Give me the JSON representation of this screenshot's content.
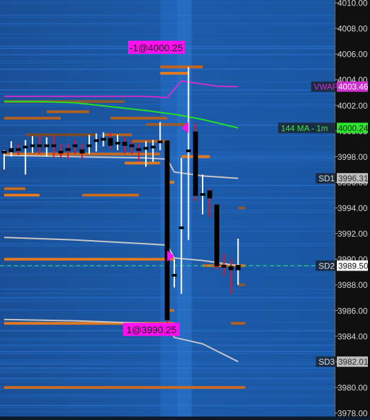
{
  "chart_data": {
    "type": "candlestick",
    "title": "",
    "xlabel": "",
    "ylabel": "",
    "ylim": [
      3978.0,
      4010.0
    ],
    "y_axis": {
      "position": "right",
      "ticks": [
        {
          "value": 4010.0,
          "label": "4010.00"
        },
        {
          "value": 4008.0,
          "label": "4008.00"
        },
        {
          "value": 4006.0,
          "label": "4006.00"
        },
        {
          "value": 4004.0,
          "label": "4004.00"
        },
        {
          "value": 4002.0,
          "label": "4002.00"
        },
        {
          "value": 4000.0,
          "label": "4000.00"
        },
        {
          "value": 3998.0,
          "label": "3998.00"
        },
        {
          "value": 3996.0,
          "label": "3996.00"
        },
        {
          "value": 3994.0,
          "label": "3994.00"
        },
        {
          "value": 3992.0,
          "label": "3992.00"
        },
        {
          "value": 3990.0,
          "label": "3990.00"
        },
        {
          "value": 3988.0,
          "label": "3988.00"
        },
        {
          "value": 3986.0,
          "label": "3986.00"
        },
        {
          "value": 3984.0,
          "label": "3984.00"
        },
        {
          "value": 3982.0,
          "label": "3982.00"
        },
        {
          "value": 3980.0,
          "label": "3980.00"
        },
        {
          "value": 3978.0,
          "label": "3978.00"
        }
      ]
    },
    "x_range": [
      0,
      48
    ],
    "candles": [
      {
        "x": 0,
        "open": 3998.3,
        "close": 3998.4,
        "high": 3998.5,
        "low": 3997.0
      },
      {
        "x": 1,
        "open": 3998.4,
        "close": 3998.6,
        "high": 3999.2,
        "low": 3998.0
      },
      {
        "x": 2,
        "open": 3998.6,
        "close": 3998.5,
        "high": 3999.0,
        "low": 3998.1
      },
      {
        "x": 3,
        "open": 3998.7,
        "close": 3998.8,
        "high": 3999.3,
        "low": 3996.6
      },
      {
        "x": 4,
        "open": 3998.8,
        "close": 3998.9,
        "high": 3999.6,
        "low": 3998.3
      },
      {
        "x": 5,
        "open": 3998.9,
        "close": 3998.8,
        "high": 3999.6,
        "low": 3998.2
      },
      {
        "x": 6,
        "open": 3998.8,
        "close": 3998.9,
        "high": 3999.5,
        "low": 3998.0
      },
      {
        "x": 7,
        "open": 3998.9,
        "close": 3998.8,
        "high": 3999.6,
        "low": 3997.9
      },
      {
        "x": 8,
        "open": 3998.4,
        "close": 3998.3,
        "high": 3999.0,
        "low": 3997.9
      },
      {
        "x": 9,
        "open": 3998.6,
        "close": 3998.5,
        "high": 3999.0,
        "low": 3997.8
      },
      {
        "x": 10,
        "open": 3998.9,
        "close": 3998.8,
        "high": 3999.3,
        "low": 3998.2
      },
      {
        "x": 11,
        "open": 3998.5,
        "close": 3998.3,
        "high": 3999.0,
        "low": 3997.8
      },
      {
        "x": 12,
        "open": 3998.8,
        "close": 3998.9,
        "high": 3999.7,
        "low": 3998.2
      },
      {
        "x": 13,
        "open": 3999.2,
        "close": 3999.3,
        "high": 3999.8,
        "low": 3998.4
      },
      {
        "x": 14,
        "open": 3999.3,
        "close": 3999.4,
        "high": 3999.9,
        "low": 3998.8
      },
      {
        "x": 15,
        "open": 3999.4,
        "close": 3998.9,
        "high": 3999.9,
        "low": 3998.6
      },
      {
        "x": 16,
        "open": 3999.0,
        "close": 3999.1,
        "high": 3999.7,
        "low": 3998.5
      },
      {
        "x": 17,
        "open": 3999.1,
        "close": 3998.9,
        "high": 3999.5,
        "low": 3998.2
      },
      {
        "x": 18,
        "open": 3998.9,
        "close": 3998.8,
        "high": 3999.3,
        "low": 3998.2
      },
      {
        "x": 19,
        "open": 3998.6,
        "close": 3998.5,
        "high": 3999.0,
        "low": 3997.6
      },
      {
        "x": 20,
        "open": 3998.6,
        "close": 3998.7,
        "high": 3999.2,
        "low": 3997.2
      },
      {
        "x": 21,
        "open": 3998.7,
        "close": 3998.8,
        "high": 3999.3,
        "low": 3997.6
      },
      {
        "x": 22,
        "open": 3999.1,
        "close": 3999.2,
        "high": 4000.7,
        "low": 3998.5
      },
      {
        "x": 23,
        "open": 3999.2,
        "close": 3985.3,
        "high": 3999.3,
        "low": 3985.0
      },
      {
        "x": 24,
        "open": 3988.7,
        "close": 3988.8,
        "high": 3990.0,
        "low": 3987.8
      },
      {
        "x": 25,
        "open": 3992.4,
        "close": 3992.5,
        "high": 3997.9,
        "low": 3987.3
      },
      {
        "x": 26,
        "open": 3998.4,
        "close": 3998.5,
        "high": 4005.0,
        "low": 3991.5
      },
      {
        "x": 27,
        "open": 3999.9,
        "close": 3995.0,
        "high": 4000.6,
        "low": 3994.5
      },
      {
        "x": 28,
        "open": 3995.0,
        "close": 3995.1,
        "high": 3996.6,
        "low": 3993.5
      },
      {
        "x": 29,
        "open": 3995.3,
        "close": 3994.8,
        "high": 3995.5,
        "low": 3993.3
      },
      {
        "x": 30,
        "open": 3994.2,
        "close": 3989.5,
        "high": 3994.3,
        "low": 3989.2
      },
      {
        "x": 31,
        "open": 3989.5,
        "close": 3989.4,
        "high": 3990.4,
        "low": 3988.7
      },
      {
        "x": 32,
        "open": 3989.4,
        "close": 3989.2,
        "high": 3990.0,
        "low": 3987.3
      },
      {
        "x": 33,
        "open": 3989.2,
        "close": 3989.5,
        "high": 3991.6,
        "low": 3988.0
      }
    ],
    "series": [
      {
        "name": "VWAP",
        "color": "#ce2fd1",
        "points": [
          [
            0,
            4002.7
          ],
          [
            10,
            4002.7
          ],
          [
            20,
            4002.7
          ],
          [
            23,
            4002.6
          ],
          [
            25,
            4003.9
          ],
          [
            30,
            4003.5
          ],
          [
            33,
            4003.46
          ]
        ]
      },
      {
        "name": "144 MA - 1m",
        "color": "#22e028",
        "points": [
          [
            0,
            4002.3
          ],
          [
            5,
            4002.3
          ],
          [
            10,
            4002.2
          ],
          [
            15,
            4001.9
          ],
          [
            20,
            4001.6
          ],
          [
            24,
            4001.3
          ],
          [
            28,
            4000.9
          ],
          [
            33,
            4000.24
          ]
        ]
      },
      {
        "name": "SD1",
        "color": "#c8c8c8",
        "points": [
          [
            0,
            3998.1
          ],
          [
            10,
            3998.0
          ],
          [
            20,
            3997.9
          ],
          [
            23,
            3997.8
          ],
          [
            24,
            3996.8
          ],
          [
            28,
            3996.5
          ],
          [
            33,
            3996.31
          ]
        ]
      },
      {
        "name": "SD2",
        "color": "#c8c8c8",
        "points": [
          [
            0,
            3991.7
          ],
          [
            10,
            3991.5
          ],
          [
            20,
            3991.2
          ],
          [
            23,
            3991.1
          ],
          [
            24,
            3990.1
          ],
          [
            28,
            3989.9
          ],
          [
            33,
            3989.5
          ]
        ]
      },
      {
        "name": "SD3",
        "color": "#c8c8c8",
        "points": [
          [
            0,
            3985.3
          ],
          [
            10,
            3985.2
          ],
          [
            20,
            3985.0
          ],
          [
            23,
            3984.9
          ],
          [
            24,
            3983.9
          ],
          [
            28,
            3983.4
          ],
          [
            33,
            3982.01
          ]
        ]
      }
    ],
    "current_price_line": {
      "value": 3989.5,
      "color": "#2ee86a"
    },
    "line_labels": [
      {
        "text": "VWAP",
        "value": "4003.46",
        "y": 4003.46,
        "name_color": "#ce2fd1",
        "box_color": "#ce2fd1",
        "value_color": "#ffffff"
      },
      {
        "text": "144 MA - 1m",
        "value": "4000.24",
        "y": 4000.24,
        "name_color": "#3de83d",
        "box_color": "#2ce62c",
        "value_color": "#0b2a0b"
      },
      {
        "text": "SD1",
        "value": "3996.31",
        "y": 3996.31,
        "name_color": "#e0e0e0",
        "box_color": "#bdbdbd",
        "value_color": "#2a2a2a"
      },
      {
        "text": "SD2",
        "value": "3989.50",
        "y": 3989.5,
        "name_color": "#e0e0e0",
        "box_color": "#ffffff",
        "value_color": "#111111"
      },
      {
        "text": "SD3",
        "value": "3982.01",
        "y": 3982.01,
        "name_color": "#e0e0e0",
        "box_color": "#bdbdbd",
        "value_color": "#2a2a2a"
      }
    ],
    "trade_markers": [
      {
        "label": "-1@4000.25",
        "price": 4000.25,
        "x": 25.7,
        "side": "sell",
        "label_y": 4006.5,
        "color": "#ff10f0"
      },
      {
        "label": "1@3990.25",
        "price": 3990.25,
        "x": 23.3,
        "side": "buy",
        "label_y": 3984.5,
        "color": "#ff10f0"
      }
    ],
    "volume_levels": [
      {
        "price": 4005.0,
        "x0": 22,
        "x1": 28,
        "color": "#c8631c"
      },
      {
        "price": 4004.5,
        "x0": 22,
        "x1": 26,
        "color": "#e07a22"
      },
      {
        "price": 4001.0,
        "x0": 0,
        "x1": 8,
        "color": "#b06020"
      },
      {
        "price": 4002.3,
        "x0": 0,
        "x1": 17,
        "color": "#8a5a30"
      },
      {
        "price": 4001.5,
        "x0": 6,
        "x1": 12,
        "color": "#b06020"
      },
      {
        "price": 4001.0,
        "x0": 15,
        "x1": 23,
        "color": "#b06020"
      },
      {
        "price": 4000.5,
        "x0": 20,
        "x1": 26,
        "color": "#9a5a2a"
      },
      {
        "price": 3999.7,
        "x0": 3,
        "x1": 13,
        "color": "#7a4a2a"
      },
      {
        "price": 3999.7,
        "x0": 14,
        "x1": 18,
        "color": "#b06020"
      },
      {
        "price": 3999.2,
        "x0": 18,
        "x1": 23,
        "color": "#b06020"
      },
      {
        "price": 3998.2,
        "x0": 0,
        "x1": 22,
        "color": "#c86a20"
      },
      {
        "price": 3997.5,
        "x0": 17,
        "x1": 22,
        "color": "#e07a22"
      },
      {
        "price": 3998.0,
        "x0": 25,
        "x1": 29,
        "color": "#e07a22"
      },
      {
        "price": 3995.5,
        "x0": 0,
        "x1": 3,
        "color": "#c86a20"
      },
      {
        "price": 3996.0,
        "x0": 23,
        "x1": 24,
        "color": "#e07a22"
      },
      {
        "price": 3995.0,
        "x0": 0,
        "x1": 5,
        "color": "#e07a22"
      },
      {
        "price": 3995.0,
        "x0": 11,
        "x1": 19,
        "color": "#c86a20"
      },
      {
        "price": 3994.0,
        "x0": 33,
        "x1": 34,
        "color": "#8a5a30"
      },
      {
        "price": 3990.0,
        "x0": 0,
        "x1": 24,
        "color": "#e07a22"
      },
      {
        "price": 3989.5,
        "x0": 28,
        "x1": 34,
        "color": "#c86a20"
      },
      {
        "price": 3988.0,
        "x0": 33,
        "x1": 34,
        "color": "#8a5a30"
      },
      {
        "price": 3986.0,
        "x0": 23,
        "x1": 24,
        "color": "#c86a20"
      },
      {
        "price": 3985.0,
        "x0": 0,
        "x1": 24,
        "color": "#e07a22"
      },
      {
        "price": 3985.0,
        "x0": 32,
        "x1": 34,
        "color": "#b06020"
      },
      {
        "price": 3980.0,
        "x0": 0,
        "x1": 34,
        "color": "#c86a20"
      }
    ],
    "grid": false,
    "legend": "right-edge line labels"
  }
}
